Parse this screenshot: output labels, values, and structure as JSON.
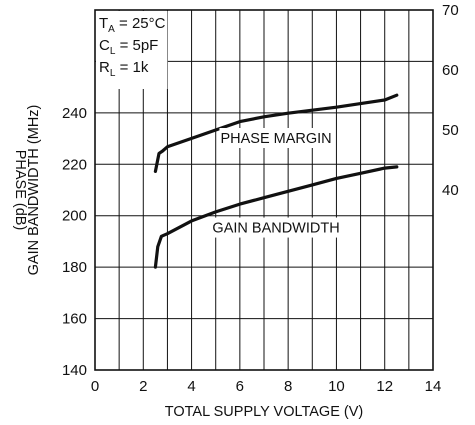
{
  "chart_data": {
    "type": "line",
    "xlabel": "TOTAL SUPPLY VOLTAGE (V)",
    "ylabel_left_outer": "PHASE (dB)",
    "ylabel_left_inner": "GAIN BANDWIDTH (MHz)",
    "xlim": [
      0,
      14
    ],
    "ylim_left": [
      140,
      280
    ],
    "ylim_right": [
      10,
      70
    ],
    "x_ticks": [
      "0",
      "2",
      "4",
      "6",
      "8",
      "10",
      "12",
      "14"
    ],
    "y_ticks_left": [
      "140",
      "160",
      "180",
      "200",
      "220",
      "240"
    ],
    "y_ticks_right": [
      "40",
      "50",
      "60",
      "70"
    ],
    "grid": true,
    "conditions": [
      {
        "main": "T",
        "sub": "A",
        "rest": " = 25°C"
      },
      {
        "main": "C",
        "sub": "L",
        "rest": " = 5pF"
      },
      {
        "main": "R",
        "sub": "L",
        "rest": " = 1k"
      }
    ],
    "series": [
      {
        "name": "PHASE MARGIN",
        "axis": "right",
        "x": [
          2.5,
          2.65,
          2.8,
          3.0,
          4.0,
          5.0,
          6.0,
          7.0,
          8.0,
          9.0,
          10.0,
          11.0,
          12.0,
          12.5
        ],
        "y": [
          43.1,
          46.1,
          46.5,
          47.2,
          48.6,
          50.0,
          51.4,
          52.2,
          52.8,
          53.3,
          53.8,
          54.4,
          55.0,
          55.8
        ]
      },
      {
        "name": "GAIN BANDWIDTH",
        "axis": "left",
        "x": [
          2.5,
          2.6,
          2.75,
          3.0,
          4.0,
          5.0,
          6.0,
          7.0,
          8.0,
          9.0,
          10.0,
          11.0,
          12.0,
          12.5
        ],
        "y": [
          180,
          188,
          192,
          193,
          198,
          201.5,
          204.5,
          207,
          209.5,
          212,
          214.5,
          216.5,
          218.5,
          219
        ]
      }
    ]
  }
}
